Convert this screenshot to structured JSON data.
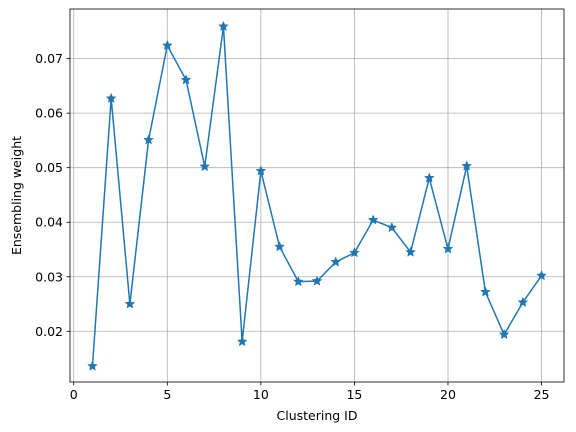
{
  "chart_data": {
    "type": "line",
    "xlabel": "Clustering ID",
    "ylabel": "Ensembling weight",
    "xlim": [
      -0.2,
      26.2
    ],
    "ylim": [
      0.0107,
      0.0791
    ],
    "xticks": [
      0,
      5,
      10,
      15,
      20,
      25
    ],
    "yticks": [
      0.02,
      0.03,
      0.04,
      0.05,
      0.06,
      0.07
    ],
    "ytick_labels": [
      "0.02",
      "0.03",
      "0.04",
      "0.05",
      "0.06",
      "0.07"
    ],
    "grid": true,
    "marker": "star",
    "color": "#1f77b4",
    "series": [
      {
        "x": [
          1,
          2,
          3,
          4,
          5,
          6,
          7,
          8,
          9,
          10,
          11,
          12,
          13,
          14,
          15,
          16,
          17,
          18,
          19,
          20,
          21,
          22,
          23,
          24,
          25
        ],
        "values": [
          0.0136,
          0.0627,
          0.025,
          0.0551,
          0.0724,
          0.0661,
          0.0502,
          0.0759,
          0.0181,
          0.0494,
          0.0355,
          0.0291,
          0.0292,
          0.0327,
          0.0344,
          0.0404,
          0.039,
          0.0345,
          0.0481,
          0.0351,
          0.0503,
          0.0272,
          0.0194,
          0.0253,
          0.0302
        ]
      }
    ]
  }
}
